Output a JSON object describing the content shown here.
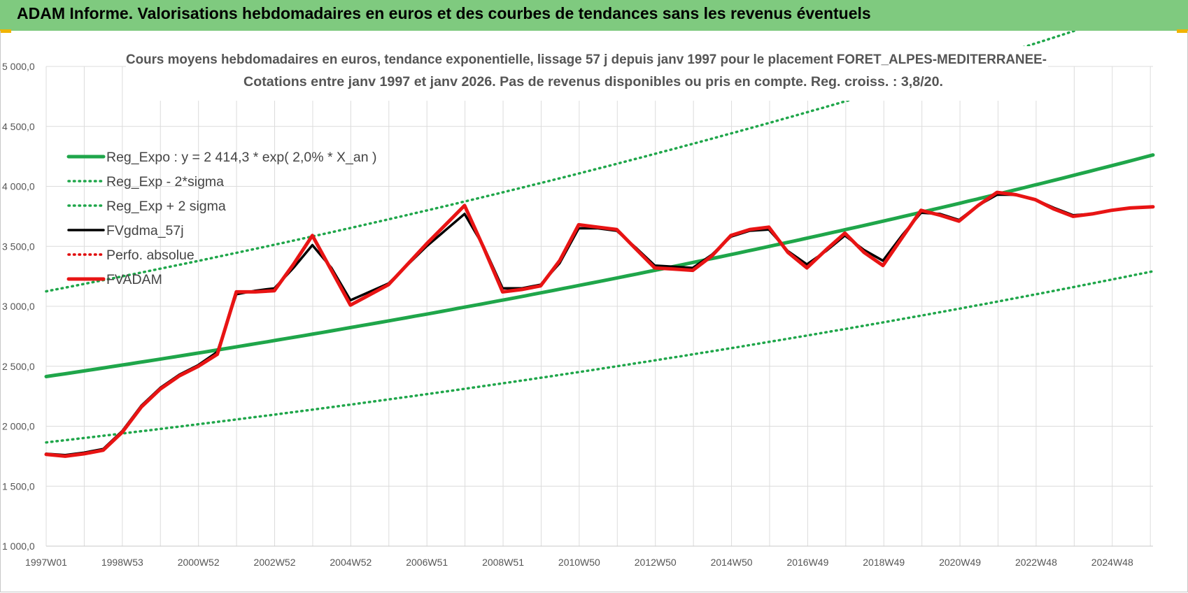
{
  "header": {
    "title": "ADAM Informe. Valorisations hebdomadaires en euros et des courbes de tendances sans les revenus éventuels"
  },
  "chart_data": {
    "type": "line",
    "title_line1": "Cours moyens hebdomadaires en euros, tendance exponentielle, lissage 57 j depuis janv 1997 pour le placement FORET_ALPES-MEDITERRANEE-",
    "title_line2": "Cotations entre janv 1997 et janv 2026. Pas de revenus disponibles ou pris en compte. Reg. croiss. : 3,8/20.",
    "xlabel": "",
    "ylabel": "",
    "ylim": [
      1000,
      5000
    ],
    "yticks": [
      "1 000,0",
      "1 500,0",
      "2 000,0",
      "2 500,0",
      "3 000,0",
      "3 500,0",
      "4 000,0",
      "4 500,0",
      "5 000,0"
    ],
    "xticks": [
      "1997W01",
      "1998W53",
      "2000W52",
      "2002W52",
      "2004W52",
      "2006W51",
      "2008W51",
      "2010W50",
      "2012W50",
      "2014W50",
      "2016W49",
      "2018W49",
      "2020W49",
      "2022W48",
      "2024W48"
    ],
    "x_range": [
      1997.0,
      2026.1
    ],
    "grid": true,
    "legend_position": "top-left",
    "series": [
      {
        "name": "Reg_Expo : y = 2 414,3 * exp( 2,0% *  X_an )",
        "style": "solid-thick",
        "color": "#1fa64a",
        "x": [
          1997.0,
          2026.1
        ],
        "values": [
          2414,
          4262
        ],
        "curve": "exponential"
      },
      {
        "name": "Reg_Exp - 2*sigma",
        "style": "dotted",
        "color": "#1fa64a",
        "x": [
          1997.0,
          2026.1
        ],
        "values": [
          1865,
          3292
        ],
        "curve": "exponential"
      },
      {
        "name": "Reg_Exp + 2 sigma",
        "style": "dotted",
        "color": "#1fa64a",
        "x": [
          1997.0,
          2026.1
        ],
        "values": [
          3125,
          5515
        ],
        "curve": "exponential"
      },
      {
        "name": "FVgdma_57j",
        "style": "solid",
        "color": "#000000",
        "x": [
          1997.0,
          1997.5,
          1998.0,
          1998.5,
          1999.0,
          1999.5,
          2000.0,
          2000.5,
          2001.0,
          2001.5,
          2002.0,
          2002.5,
          2003.0,
          2003.5,
          2004.0,
          2004.5,
          2005.0,
          2006.0,
          2007.0,
          2008.0,
          2008.5,
          2009.0,
          2009.5,
          2010.0,
          2010.5,
          2011.0,
          2011.5,
          2012.0,
          2012.5,
          2013.0,
          2013.5,
          2014.0,
          2014.5,
          2015.0,
          2015.5,
          2016.0,
          2016.5,
          2017.0,
          2017.5,
          2018.0,
          2018.5,
          2019.0,
          2019.5,
          2020.0,
          2020.5,
          2021.0,
          2021.5,
          2022.0,
          2022.5,
          2023.0,
          2023.5,
          2024.0,
          2024.5,
          2025.0,
          2025.5,
          2026.1
        ],
        "values": [
          1770,
          1760,
          1780,
          1810,
          1960,
          2170,
          2320,
          2430,
          2510,
          2620,
          3100,
          3130,
          3150,
          3320,
          3510,
          3320,
          3050,
          3190,
          3500,
          3770,
          3500,
          3150,
          3150,
          3180,
          3360,
          3650,
          3650,
          3630,
          3490,
          3340,
          3330,
          3320,
          3430,
          3580,
          3630,
          3640,
          3460,
          3350,
          3460,
          3590,
          3470,
          3380,
          3590,
          3780,
          3770,
          3720,
          3840,
          3930,
          3930,
          3890,
          3820,
          3760,
          3770,
          3800,
          3820,
          3830
        ]
      },
      {
        "name": "Perfo. absolue",
        "style": "dotted",
        "color": "#e00000",
        "x": [
          1997.0,
          1997.5,
          1998.0,
          1998.5,
          1999.0,
          1999.5,
          2000.0,
          2000.5,
          2001.0,
          2001.5,
          2002.0,
          2002.5,
          2003.0,
          2003.5,
          2004.0,
          2004.5,
          2005.0,
          2006.0,
          2007.0,
          2008.0,
          2008.5,
          2009.0,
          2009.5,
          2010.0,
          2010.5,
          2011.0,
          2011.5,
          2012.0,
          2012.5,
          2013.0,
          2013.5,
          2014.0,
          2014.5,
          2015.0,
          2015.5,
          2016.0,
          2016.5,
          2017.0,
          2017.5,
          2018.0,
          2018.5,
          2019.0,
          2019.5,
          2020.0,
          2020.5,
          2021.0,
          2021.5,
          2022.0,
          2022.5,
          2023.0,
          2023.5,
          2024.0,
          2024.5,
          2025.0,
          2025.5,
          2026.1
        ],
        "values": [
          1765,
          1750,
          1770,
          1800,
          1950,
          2160,
          2310,
          2420,
          2500,
          2600,
          3120,
          3120,
          3130,
          3350,
          3590,
          3300,
          3010,
          3180,
          3520,
          3840,
          3490,
          3120,
          3140,
          3170,
          3380,
          3680,
          3660,
          3640,
          3480,
          3320,
          3310,
          3300,
          3420,
          3590,
          3640,
          3660,
          3450,
          3320,
          3470,
          3610,
          3450,
          3340,
          3570,
          3800,
          3760,
          3710,
          3840,
          3950,
          3930,
          3890,
          3810,
          3750,
          3770,
          3800,
          3820,
          3830
        ]
      },
      {
        "name": "FVADAM",
        "style": "solid-thick",
        "color": "#e81414",
        "x": [
          1997.0,
          1997.5,
          1998.0,
          1998.5,
          1999.0,
          1999.5,
          2000.0,
          2000.5,
          2001.0,
          2001.5,
          2002.0,
          2002.5,
          2003.0,
          2003.5,
          2004.0,
          2004.5,
          2005.0,
          2006.0,
          2007.0,
          2008.0,
          2008.5,
          2009.0,
          2009.5,
          2010.0,
          2010.5,
          2011.0,
          2011.5,
          2012.0,
          2012.5,
          2013.0,
          2013.5,
          2014.0,
          2014.5,
          2015.0,
          2015.5,
          2016.0,
          2016.5,
          2017.0,
          2017.5,
          2018.0,
          2018.5,
          2019.0,
          2019.5,
          2020.0,
          2020.5,
          2021.0,
          2021.5,
          2022.0,
          2022.5,
          2023.0,
          2023.5,
          2024.0,
          2024.5,
          2025.0,
          2025.5,
          2026.1
        ],
        "values": [
          1765,
          1750,
          1770,
          1800,
          1950,
          2160,
          2310,
          2420,
          2500,
          2600,
          3120,
          3120,
          3130,
          3350,
          3590,
          3300,
          3010,
          3180,
          3520,
          3840,
          3490,
          3120,
          3140,
          3170,
          3380,
          3680,
          3660,
          3640,
          3480,
          3320,
          3310,
          3300,
          3420,
          3590,
          3640,
          3660,
          3450,
          3320,
          3470,
          3610,
          3450,
          3340,
          3570,
          3800,
          3760,
          3710,
          3840,
          3950,
          3930,
          3890,
          3810,
          3750,
          3770,
          3800,
          3820,
          3830
        ]
      }
    ]
  }
}
